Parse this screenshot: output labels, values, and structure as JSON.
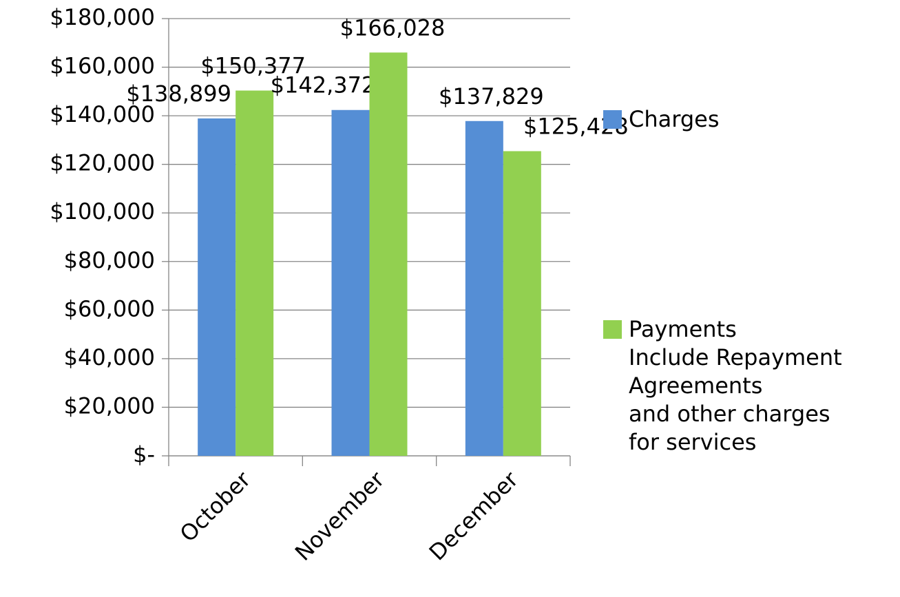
{
  "chart_data": {
    "type": "bar",
    "categories": [
      "October",
      "November",
      "December"
    ],
    "series": [
      {
        "name": "Charges",
        "color": "#558ed5",
        "values": [
          138899,
          142372,
          137829
        ],
        "value_labels": [
          "$138,899",
          "$142,372",
          "$137,829"
        ]
      },
      {
        "name": "Payments\nInclude Repayment\nAgreements\nand other charges\nfor services",
        "color": "#92d050",
        "values": [
          150377,
          166028,
          125428
        ],
        "value_labels": [
          "$150,377",
          "$166,028",
          "$125,428"
        ]
      }
    ],
    "ylim": [
      0,
      180000
    ],
    "yticks": [
      {
        "value": 0,
        "label": "$-"
      },
      {
        "value": 20000,
        "label": "$20,000"
      },
      {
        "value": 40000,
        "label": "$40,000"
      },
      {
        "value": 60000,
        "label": "$60,000"
      },
      {
        "value": 80000,
        "label": "$80,000"
      },
      {
        "value": 100000,
        "label": "$100,000"
      },
      {
        "value": 120000,
        "label": "$120,000"
      },
      {
        "value": 140000,
        "label": "$140,000"
      },
      {
        "value": 160000,
        "label": "$160,000"
      },
      {
        "value": 180000,
        "label": "$180,000"
      }
    ],
    "grid": true,
    "legend": "right"
  }
}
